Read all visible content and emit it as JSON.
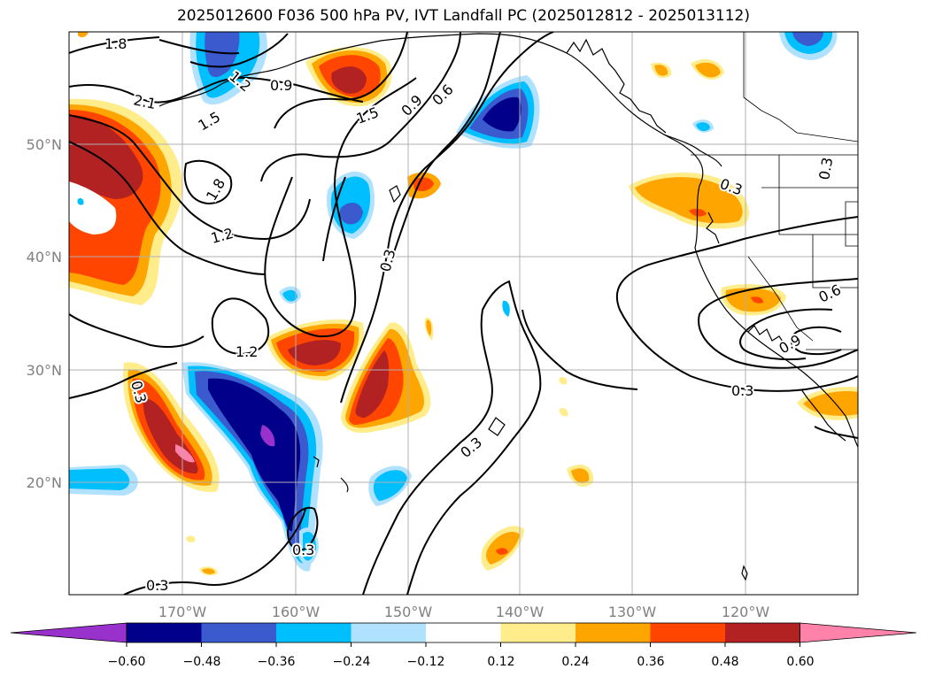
{
  "title": "2025012600 F036 500 hPa PV, IVT Landfall PC (2025012812 - 2025013112)",
  "map": {
    "lon_ticks": [
      "170°W",
      "160°W",
      "150°W",
      "140°W",
      "130°W",
      "120°W"
    ],
    "lat_ticks": [
      "50°N",
      "40°N",
      "30°N",
      "20°N"
    ],
    "contour_labels": [
      "1.8",
      "2.1",
      "1.5",
      "1.2",
      "0.9",
      "1.5",
      "0.9",
      "0.6",
      "1.8",
      "1.2",
      "0.3",
      "1.2",
      "0.3",
      "0.3",
      "0.3",
      "0.3",
      "0.3",
      "0.6",
      "0.9",
      "0.3",
      "0.3"
    ]
  },
  "colorbar": {
    "colors": [
      "#9932cc",
      "#00008b",
      "#3a5acd",
      "#00bfff",
      "#b0e2ff",
      "#ffffff",
      "#ffec8b",
      "#ffa500",
      "#ff4500",
      "#b22222",
      "#ff82ab"
    ],
    "tick_labels": [
      "−0.60",
      "−0.48",
      "−0.36",
      "−0.24",
      "−0.12",
      "0.12",
      "0.24",
      "0.36",
      "0.48",
      "0.60"
    ]
  }
}
